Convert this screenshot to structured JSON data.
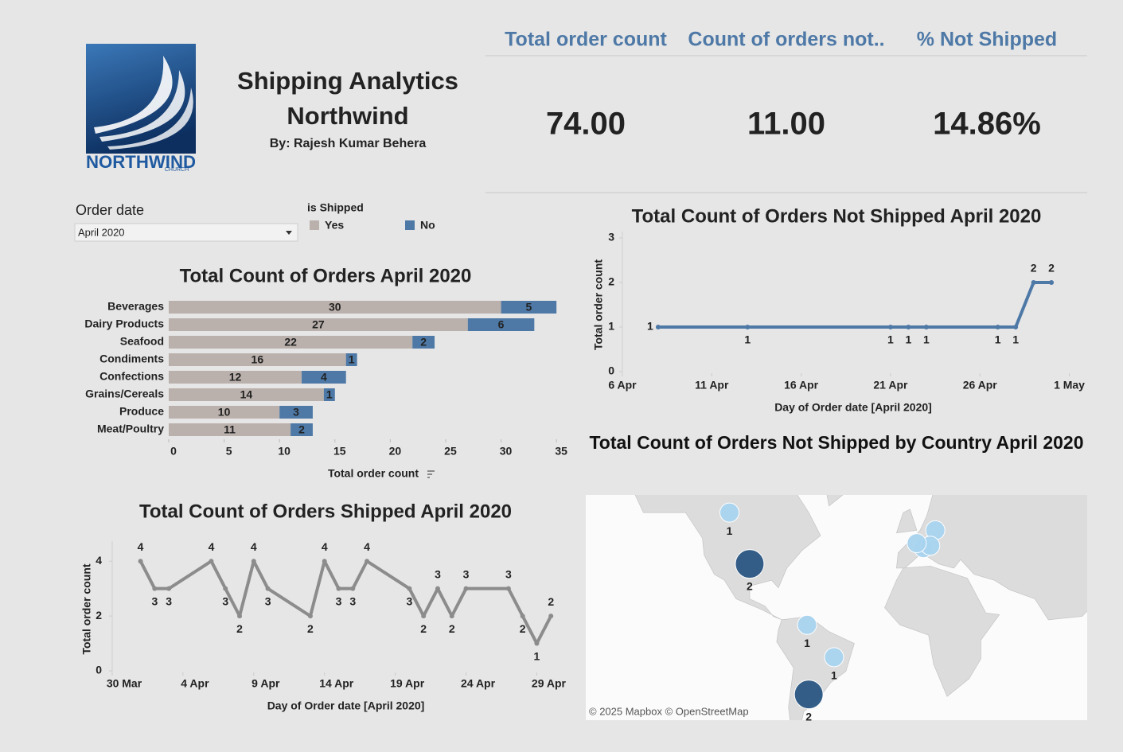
{
  "header": {
    "logo": {
      "name": "NORTHWIND",
      "tagline": "CHURCH"
    },
    "title": [
      "Shipping Analytics",
      "Northwind"
    ],
    "byline": "By: Rajesh Kumar Behera"
  },
  "kpis": [
    {
      "label": "Total order count",
      "value": "74.00"
    },
    {
      "label": "Count of orders not..",
      "value": "11.00"
    },
    {
      "label": "% Not Shipped",
      "value": "14.86%"
    }
  ],
  "filter": {
    "label": "Order date",
    "value": "April 2020"
  },
  "chart_data": [
    {
      "type": "bar",
      "orientation": "horizontal",
      "stacked": true,
      "title": "Total Count of Orders April 2020",
      "legend_title": "is Shipped",
      "categories": [
        "Beverages",
        "Dairy Products",
        "Seafood",
        "Condiments",
        "Confections",
        "Grains/Cereals",
        "Produce",
        "Meat/Poultry"
      ],
      "series": [
        {
          "name": "Yes",
          "color": "#bab0ac",
          "values": [
            30,
            27,
            22,
            16,
            12,
            14,
            10,
            11
          ]
        },
        {
          "name": "No",
          "color": "#4e79a7",
          "values": [
            5,
            6,
            2,
            1,
            4,
            1,
            3,
            2
          ]
        }
      ],
      "xlim": [
        0,
        37
      ],
      "xticks": [
        0,
        5,
        10,
        15,
        20,
        25,
        30,
        35
      ],
      "xlabel": "Total order count",
      "grid": false,
      "data_labels": true
    },
    {
      "type": "line",
      "title": "Total Count of Orders Not Shipped April 2020",
      "x": [
        "2020-04-08",
        "2020-04-13",
        "2020-04-21",
        "2020-04-22",
        "2020-04-23",
        "2020-04-27",
        "2020-04-28",
        "2020-04-29",
        "2020-04-30"
      ],
      "values": [
        1,
        1,
        1,
        1,
        1,
        1,
        1,
        2,
        2
      ],
      "color": "#4e79a7",
      "xlim": [
        "2020-04-06",
        "2020-05-02"
      ],
      "xticks": [
        {
          "value": "2020-04-06",
          "label": "6 Apr"
        },
        {
          "value": "2020-04-11",
          "label": "11 Apr"
        },
        {
          "value": "2020-04-16",
          "label": "16 Apr"
        },
        {
          "value": "2020-04-21",
          "label": "21 Apr"
        },
        {
          "value": "2020-04-26",
          "label": "26 Apr"
        },
        {
          "value": "2020-05-01",
          "label": "1 May"
        }
      ],
      "ylim": [
        0,
        3
      ],
      "yticks": [
        0,
        1,
        2,
        3
      ],
      "xlabel": "Day of Order date [April 2020]",
      "ylabel": "Total order count",
      "grid": false,
      "data_labels": true
    },
    {
      "type": "line",
      "title": "Total Count of Orders Shipped April 2020",
      "x": [
        "2020-04-01",
        "2020-04-02",
        "2020-04-03",
        "2020-04-06",
        "2020-04-07",
        "2020-04-08",
        "2020-04-09",
        "2020-04-10",
        "2020-04-13",
        "2020-04-14",
        "2020-04-15",
        "2020-04-16",
        "2020-04-17",
        "2020-04-20",
        "2020-04-21",
        "2020-04-22",
        "2020-04-23",
        "2020-04-24",
        "2020-04-27",
        "2020-04-28",
        "2020-04-29",
        "2020-04-30"
      ],
      "values": [
        4,
        3,
        3,
        4,
        3,
        2,
        4,
        3,
        2,
        4,
        3,
        3,
        4,
        3,
        2,
        3,
        2,
        3,
        3,
        2,
        1,
        2
      ],
      "color": "#8c8c8c",
      "xlim": [
        "2020-03-30",
        "2020-05-01"
      ],
      "xticks": [
        {
          "value": "2020-03-30",
          "label": "30 Mar"
        },
        {
          "value": "2020-04-04",
          "label": "4 Apr"
        },
        {
          "value": "2020-04-09",
          "label": "9 Apr"
        },
        {
          "value": "2020-04-14",
          "label": "14 Apr"
        },
        {
          "value": "2020-04-19",
          "label": "19 Apr"
        },
        {
          "value": "2020-04-24",
          "label": "24 Apr"
        },
        {
          "value": "2020-04-29",
          "label": "29 Apr"
        }
      ],
      "ylim": [
        0,
        4.5
      ],
      "yticks": [
        0,
        2,
        4
      ],
      "xlabel": "Day of Order date [April 2020]",
      "ylabel": "Total order count",
      "grid": false,
      "data_labels": true
    },
    {
      "type": "map",
      "title": "Total Count of Orders Not Shipped by Country April 2020",
      "lon": [
        -109,
        -97,
        6,
        13,
        10,
        2,
        -63,
        -47,
        -62
      ],
      "lat": [
        58,
        38,
        45,
        52,
        46,
        47,
        5,
        -14,
        -34
      ],
      "values": [
        1,
        2,
        1,
        1,
        1,
        1,
        1,
        1,
        2
      ],
      "value_labels": [
        "1",
        "2",
        null,
        null,
        null,
        null,
        "1",
        "1",
        "2"
      ],
      "color_range": [
        "#a9d4f0",
        "#2a5783"
      ],
      "credit": "© 2025 Mapbox © OpenStreetMap"
    }
  ]
}
